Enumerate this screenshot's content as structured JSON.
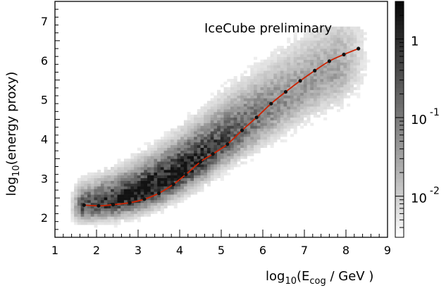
{
  "chart_data": {
    "type": "heatmap",
    "annotation": "IceCube preliminary",
    "xlabel": {
      "base": "log",
      "sub1": "10",
      "mid": "(E",
      "sub2": "cog",
      "tail": " / GeV )"
    },
    "ylabel": {
      "base": "log",
      "sub": "10",
      "tail": "(energy proxy)"
    },
    "xlim": [
      1,
      9
    ],
    "ylim": [
      1.5,
      7.5
    ],
    "x_ticks": [
      "1",
      "2",
      "3",
      "4",
      "5",
      "6",
      "7",
      "8",
      "9"
    ],
    "y_ticks": [
      "2",
      "3",
      "4",
      "5",
      "6",
      "7"
    ],
    "x_tick_values": [
      1,
      2,
      3,
      4,
      5,
      6,
      7,
      8,
      9
    ],
    "y_tick_values": [
      2,
      3,
      4,
      5,
      6,
      7
    ],
    "colorbar": {
      "scale": "log",
      "range": [
        0.003,
        3
      ],
      "ticks": [
        {
          "value": 1,
          "label": "1"
        },
        {
          "value": 0.1,
          "label": "10",
          "exponent": "-1"
        },
        {
          "value": 0.01,
          "label": "10",
          "exponent": "-2"
        }
      ]
    },
    "density_ridge": {
      "x": [
        1.5,
        2.0,
        2.5,
        3.0,
        3.5,
        4.0,
        4.5,
        5.0,
        5.5,
        6.0,
        6.5,
        7.0,
        7.5,
        8.0,
        8.3
      ],
      "y": [
        2.25,
        2.33,
        2.45,
        2.62,
        2.85,
        3.15,
        3.5,
        3.9,
        4.25,
        4.6,
        4.95,
        5.3,
        5.6,
        5.85,
        6.0
      ]
    },
    "series": [
      {
        "type": "line+markers",
        "color": "#cc2200",
        "marker_color": "#111111",
        "x": [
          1.7,
          2.05,
          2.4,
          2.8,
          3.15,
          3.5,
          3.85,
          4.15,
          4.5,
          4.8,
          5.15,
          5.5,
          5.85,
          6.2,
          6.55,
          6.9,
          7.25,
          7.6,
          7.95,
          8.3
        ],
        "y": [
          2.32,
          2.3,
          2.33,
          2.38,
          2.47,
          2.62,
          2.85,
          3.1,
          3.42,
          3.62,
          3.87,
          4.22,
          4.55,
          4.9,
          5.2,
          5.48,
          5.74,
          5.98,
          6.15,
          6.3
        ]
      }
    ]
  }
}
